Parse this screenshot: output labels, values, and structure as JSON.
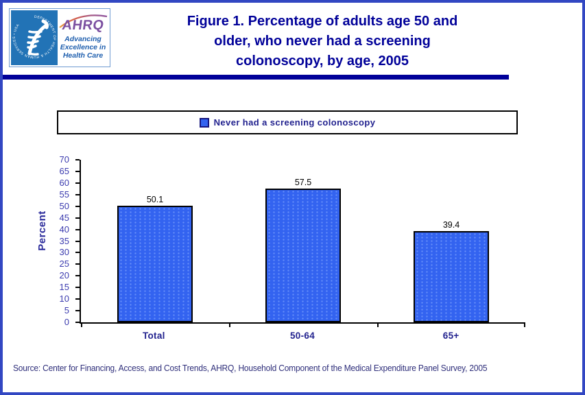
{
  "header": {
    "logo": {
      "seal_text": "DEPARTMENT OF HEALTH & HUMAN SERVICES • USA",
      "brand": "AHRQ",
      "tagline_lines": [
        "Advancing",
        "Excellence in",
        "Health Care"
      ]
    },
    "title_lines": [
      "Figure 1. Percentage of adults age 50 and",
      "older, who never had a screening",
      "colonoscopy, by age, 2005"
    ]
  },
  "legend": {
    "label": "Never had a screening colonoscopy"
  },
  "chart_data": {
    "type": "bar",
    "title": "Figure 1. Percentage of adults age 50 and older, who never had a screening colonoscopy, by age, 2005",
    "categories": [
      "Total",
      "50-64",
      "65+"
    ],
    "values": [
      50.1,
      57.5,
      39.4
    ],
    "data_labels": [
      "50.1",
      "57.5",
      "39.4"
    ],
    "series": [
      {
        "name": "Never had a screening colonoscopy",
        "values": [
          50.1,
          57.5,
          39.4
        ]
      }
    ],
    "ylabel": "Percent",
    "xlabel": "",
    "ylim": [
      0,
      70
    ],
    "yticks": [
      0,
      5,
      10,
      15,
      20,
      25,
      30,
      35,
      40,
      45,
      50,
      55,
      60,
      65,
      70
    ],
    "grid": false,
    "legend_position": "top",
    "bar_color": "#3363f0"
  },
  "footer": {
    "source": "Source: Center for Financing, Access, and Cost Trends, AHRQ, Household Component of the Medical Expenditure Panel Survey, 2005"
  },
  "colors": {
    "page_border": "#3247c2",
    "rule": "#000099",
    "title": "#000099",
    "bar_fill": "#3363f0",
    "bar_border": "#000000",
    "axis_tick_label": "#3a3aae",
    "category_label": "#21218e",
    "hhs_seal_blue": "#2273b6",
    "ahrq_purple": "#7b4fa0",
    "tagline_blue": "#1f5fae"
  }
}
